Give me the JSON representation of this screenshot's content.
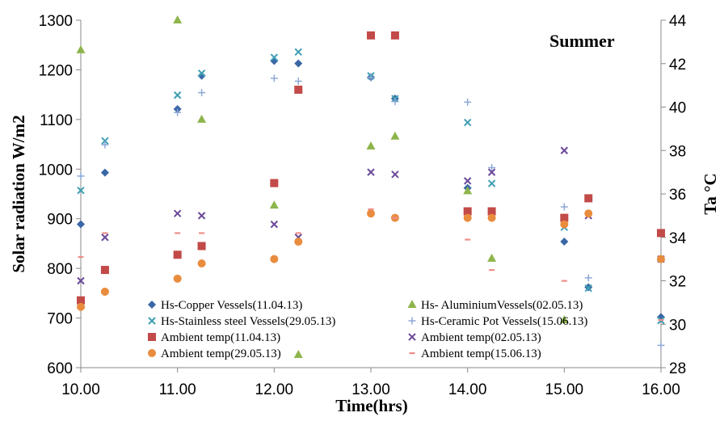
{
  "chart_data": {
    "type": "scatter",
    "annotation": "Summer",
    "xlabel": "Time(hrs)",
    "ylabel": "Solar radiation W/m2",
    "y2label": "Ta °C",
    "xlim": [
      10,
      16
    ],
    "ylim": [
      600,
      1300
    ],
    "y2lim": [
      28,
      44
    ],
    "x_ticks": [
      "10.00",
      "11.00",
      "12.00",
      "13.00",
      "14.00",
      "15.00",
      "16.00"
    ],
    "y_ticks": [
      "600",
      "700",
      "800",
      "900",
      "1000",
      "1100",
      "1200",
      "1300"
    ],
    "y2_ticks": [
      "28",
      "30",
      "32",
      "34",
      "36",
      "38",
      "40",
      "42",
      "44"
    ],
    "grid": false,
    "legend_position": "bottom-inside",
    "x_values": [
      10.0,
      10.25,
      11.0,
      11.25,
      12.0,
      12.25,
      13.0,
      13.25,
      14.0,
      14.25,
      15.0,
      15.25,
      16.0
    ],
    "series": [
      {
        "name": "Hs-Copper Vessels(11.04.13)",
        "axis": "left",
        "marker": "diamond",
        "color": "#3a67a6",
        "values": [
          889,
          993,
          1121,
          1188,
          1218,
          1213,
          1185,
          1142,
          962,
          915,
          854,
          762,
          702
        ]
      },
      {
        "name": "Hs- AluminiumVessels(02.05.13)",
        "axis": "left",
        "marker": "triangle",
        "color": "#8eb54c",
        "values": [
          1240,
          null,
          1300,
          1100,
          927,
          626,
          1046,
          1066,
          956,
          820,
          696,
          null,
          null
        ]
      },
      {
        "name": "Hs-Stainless steel Vessels(29.05.13)",
        "axis": "left",
        "marker": "x",
        "color": "#3e9fb3",
        "values": [
          957,
          1057,
          1149,
          1193,
          1225,
          1236,
          1188,
          1142,
          1094,
          971,
          883,
          760,
          695
        ]
      },
      {
        "name": "Hs-Ceramic Pot Vessels(15.06.13)",
        "axis": "left",
        "marker": "plus",
        "color": "#8ea8d6",
        "values": [
          986,
          1049,
          1114,
          1154,
          1183,
          1177,
          1184,
          1136,
          1135,
          1003,
          924,
          781,
          645
        ]
      },
      {
        "name": "Ambient temp(11.04.13)",
        "axis": "right",
        "marker": "square",
        "color": "#c24a48",
        "values": [
          31.1,
          32.5,
          33.2,
          33.6,
          36.5,
          40.8,
          43.3,
          43.3,
          35.2,
          35.2,
          34.9,
          35.8,
          34.2
        ]
      },
      {
        "name": "Ambient temp(02.05.13)",
        "axis": "right",
        "marker": "xcross",
        "color": "#6b4a9a",
        "values": [
          32.0,
          34.0,
          35.1,
          35.0,
          34.6,
          34.0,
          37.0,
          36.9,
          36.6,
          37.0,
          38.0,
          35.0,
          33.0
        ]
      },
      {
        "name": "Ambient temp(29.05.13)",
        "axis": "right",
        "marker": "circle",
        "color": "#e98c3e",
        "values": [
          30.8,
          31.5,
          32.1,
          32.8,
          33.0,
          33.8,
          35.1,
          34.9,
          34.9,
          34.9,
          34.6,
          35.1,
          33.0
        ]
      },
      {
        "name": "Ambient temp(15.06.13)",
        "axis": "right",
        "marker": "dash",
        "color": "#ee8f8a",
        "values": [
          33.1,
          34.2,
          34.2,
          34.2,
          null,
          34.2,
          35.3,
          34.9,
          33.9,
          32.5,
          32.0,
          null,
          30.2
        ]
      }
    ]
  }
}
